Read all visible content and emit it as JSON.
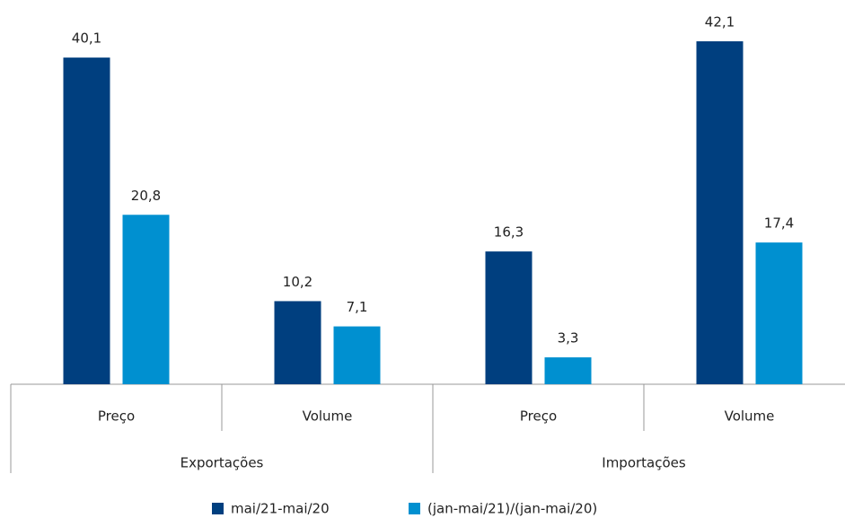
{
  "chart_data": {
    "type": "bar",
    "categories": [
      "Preço",
      "Volume",
      "Preço",
      "Volume"
    ],
    "groups": [
      "Exportações",
      "Importações"
    ],
    "series": [
      {
        "name": "mai/21-mai/20",
        "color": "#003f7f",
        "values": [
          40.1,
          10.2,
          16.3,
          42.1
        ],
        "value_labels": [
          "40,1",
          "10,2",
          "16,3",
          "42,1"
        ]
      },
      {
        "name": "(jan-mai/21)/(jan-mai/20)",
        "color": "#0090d0",
        "values": [
          20.8,
          7.1,
          3.3,
          17.4
        ],
        "value_labels": [
          "20,8",
          "7,1",
          "3,3",
          "17,4"
        ]
      }
    ],
    "legend": "bottom"
  }
}
